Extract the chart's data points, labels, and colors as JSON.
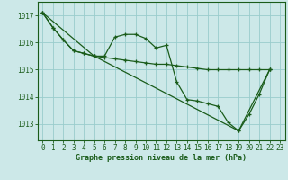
{
  "background_color": "#cce8e8",
  "grid_color": "#99cccc",
  "line_color": "#1a5c1a",
  "text_color": "#1a5c1a",
  "xlabel": "Graphe pression niveau de la mer (hPa)",
  "xlim": [
    -0.5,
    23.5
  ],
  "ylim": [
    1012.4,
    1017.5
  ],
  "yticks": [
    1013,
    1014,
    1015,
    1016,
    1017
  ],
  "xticks": [
    0,
    1,
    2,
    3,
    4,
    5,
    6,
    7,
    8,
    9,
    10,
    11,
    12,
    13,
    14,
    15,
    16,
    17,
    18,
    19,
    20,
    21,
    22,
    23
  ],
  "series1_x": [
    0,
    1,
    2,
    3,
    4,
    5,
    6,
    7,
    8,
    9,
    10,
    11,
    12,
    13,
    14,
    15,
    16,
    17,
    18,
    19,
    20,
    21,
    22
  ],
  "series1_y": [
    1017.1,
    1016.55,
    1016.1,
    1015.7,
    1015.6,
    1015.5,
    1015.5,
    1016.2,
    1016.3,
    1016.3,
    1016.15,
    1015.8,
    1015.9,
    1014.55,
    1013.9,
    1013.85,
    1013.75,
    1013.65,
    1013.05,
    1012.75,
    1013.35,
    1014.1,
    1015.0
  ],
  "series2_x": [
    0,
    1,
    2,
    3,
    4,
    5,
    6,
    7,
    8,
    9,
    10,
    11,
    12,
    13,
    14,
    15,
    16,
    17,
    18,
    19,
    20,
    21,
    22
  ],
  "series2_y": [
    1017.1,
    1016.55,
    1016.1,
    1015.7,
    1015.6,
    1015.5,
    1015.45,
    1015.4,
    1015.35,
    1015.3,
    1015.25,
    1015.2,
    1015.2,
    1015.15,
    1015.1,
    1015.05,
    1015.0,
    1015.0,
    1015.0,
    1015.0,
    1015.0,
    1015.0,
    1015.0
  ],
  "series3_x": [
    0,
    5,
    19,
    22
  ],
  "series3_y": [
    1017.1,
    1015.5,
    1012.75,
    1015.0
  ],
  "tick_fontsize": 5.5,
  "xlabel_fontsize": 6.0
}
